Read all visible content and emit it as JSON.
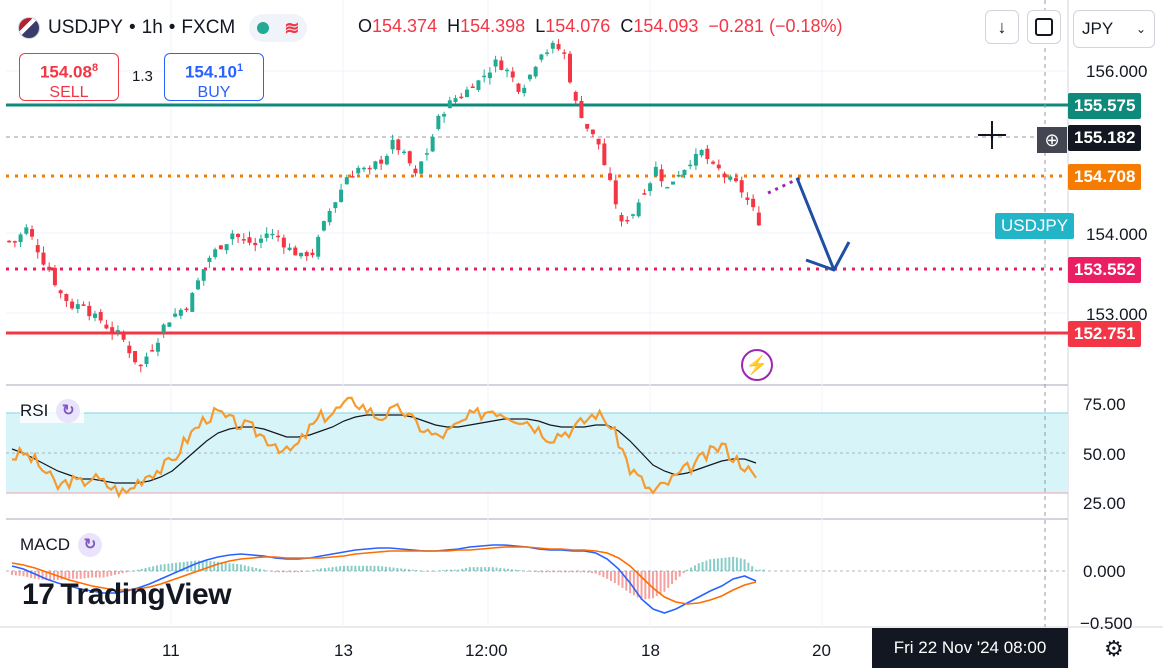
{
  "header": {
    "symbol": "USDJPY",
    "sep1": "•",
    "interval": "1h",
    "sep2": "•",
    "source": "FXCM",
    "ohlc": {
      "o_label": "O",
      "o": "154.374",
      "h_label": "H",
      "h": "154.398",
      "l_label": "L",
      "l": "154.076",
      "c_label": "C",
      "c": "154.093",
      "chg": "−0.281 (−0.18%)"
    }
  },
  "trade": {
    "sell_price": "154.08",
    "sell_price_sup": "8",
    "sell_label": "SELL",
    "spread": "1.3",
    "buy_price": "154.10",
    "buy_price_sup": "1",
    "buy_label": "BUY"
  },
  "currency": "JPY",
  "price_tags": {
    "teal": "155.575",
    "crosshair": "155.182",
    "orange": "154.708",
    "symbol_tag": "USDJPY",
    "pink": "153.552",
    "red": "152.751"
  },
  "colors": {
    "up": "#22ab94",
    "down": "#f23645",
    "teal_line": "#0f8a7a",
    "orange": "#f57c00",
    "pink": "#e91e63",
    "red": "#f23645",
    "rsi": "#f59b2f",
    "rsi_band": "#d7f4f9",
    "arrow": "#1e4fa3",
    "purple": "#9c27b0"
  },
  "rsi_label": "RSI",
  "macd_label": "MACD",
  "logo": "TradingView",
  "crosshair_date": "Fri 22 Nov '24   08:00",
  "chart_data": [
    {
      "type": "candlestick",
      "title": "USDJPY • 1h • FXCM",
      "y_ticks": [
        156.0,
        154.0,
        153.0
      ],
      "y_tick_labels": [
        "156.000",
        "154.000",
        "153.000"
      ],
      "x_tick_labels": [
        "11",
        "13",
        "12:00",
        "18",
        "20"
      ],
      "ylim": [
        152.3,
        156.35
      ],
      "close_path": [
        153.9,
        154.05,
        153.8,
        153.55,
        153.25,
        153.1,
        153.15,
        152.95,
        152.85,
        152.75,
        152.55,
        152.35,
        152.6,
        152.85,
        153.0,
        153.1,
        153.4,
        153.7,
        153.85,
        154.0,
        153.9,
        153.85,
        154.0,
        153.95,
        153.8,
        153.7,
        153.75,
        154.1,
        154.4,
        154.7,
        154.8,
        154.75,
        154.9,
        155.1,
        154.95,
        154.7,
        155.0,
        155.4,
        155.6,
        155.7,
        155.85,
        155.95,
        156.1,
        156.0,
        155.8,
        155.95,
        156.25,
        156.3,
        156.2,
        155.6,
        155.3,
        155.1,
        154.6,
        154.1,
        154.25,
        154.55,
        154.8,
        154.55,
        154.75,
        154.9,
        155.0,
        154.8,
        154.7,
        154.6,
        154.4,
        154.15
      ],
      "levels": [
        {
          "label": "155.575",
          "price": 155.575,
          "style": "solid",
          "color": "teal"
        },
        {
          "label": "154.708",
          "price": 154.708,
          "style": "dotted",
          "color": "orange"
        },
        {
          "label": "153.552",
          "price": 153.552,
          "style": "dotted",
          "color": "pink"
        },
        {
          "label": "152.751",
          "price": 152.751,
          "style": "solid",
          "color": "red"
        }
      ],
      "crosshair_price": 155.182,
      "projection_arrow": {
        "from_price": 154.708,
        "to_price": 153.552
      }
    },
    {
      "type": "line",
      "title": "RSI",
      "y_ticks": [
        75.0,
        50.0,
        25.0
      ],
      "y_tick_labels": [
        "75.00",
        "50.00",
        "25.00"
      ],
      "ylim": [
        20,
        80
      ],
      "band": [
        30,
        70
      ],
      "series": [
        {
          "values": [
            48,
            50,
            46,
            40,
            33,
            36,
            35,
            38,
            35,
            32,
            30,
            36,
            40,
            42,
            46,
            55,
            62,
            68,
            70,
            66,
            64,
            62,
            58,
            55,
            50,
            54,
            62,
            68,
            70,
            74,
            76,
            72,
            68,
            70,
            72,
            66,
            62,
            58,
            60,
            64,
            68,
            70,
            72,
            70,
            68,
            66,
            62,
            58,
            60,
            62,
            66,
            70,
            66,
            56,
            42,
            36,
            30,
            34,
            38,
            42,
            46,
            50,
            54,
            48,
            44,
            36
          ]
        },
        {
          "values": [
            52,
            50,
            47,
            44,
            41,
            39,
            37,
            37,
            36,
            35,
            35,
            35,
            36,
            38,
            41,
            46,
            51,
            56,
            60,
            62,
            63,
            63,
            62,
            60,
            58,
            58,
            59,
            61,
            63,
            66,
            68,
            69,
            69,
            69,
            69,
            68,
            66,
            64,
            63,
            63,
            64,
            65,
            66,
            67,
            67,
            67,
            66,
            64,
            63,
            63,
            63,
            64,
            64,
            61,
            56,
            50,
            44,
            41,
            39,
            40,
            42,
            44,
            46,
            47,
            47,
            45
          ]
        }
      ]
    },
    {
      "type": "bar+line",
      "title": "MACD",
      "y_ticks": [
        0.0,
        -0.5
      ],
      "y_tick_labels": [
        "0.000",
        "−0.500"
      ],
      "ylim": [
        -0.6,
        0.35
      ],
      "series": [
        {
          "values": [
            0.05,
            0.02,
            -0.03,
            -0.08,
            -0.12,
            -0.15,
            -0.18,
            -0.2,
            -0.22,
            -0.22,
            -0.2,
            -0.17,
            -0.13,
            -0.08,
            -0.03,
            0.02,
            0.07,
            0.11,
            0.14,
            0.16,
            0.17,
            0.16,
            0.15,
            0.13,
            0.12,
            0.12,
            0.13,
            0.15,
            0.17,
            0.19,
            0.21,
            0.22,
            0.23,
            0.23,
            0.22,
            0.21,
            0.2,
            0.2,
            0.21,
            0.22,
            0.24,
            0.25,
            0.26,
            0.26,
            0.25,
            0.24,
            0.22,
            0.21,
            0.21,
            0.2,
            0.2,
            0.18,
            0.12,
            0.02,
            -0.12,
            -0.28,
            -0.38,
            -0.42,
            -0.38,
            -0.32,
            -0.26,
            -0.2,
            -0.15,
            -0.08,
            -0.05,
            -0.1
          ]
        },
        {
          "values": [
            0.08,
            0.06,
            0.03,
            -0.01,
            -0.05,
            -0.09,
            -0.12,
            -0.15,
            -0.17,
            -0.19,
            -0.19,
            -0.18,
            -0.16,
            -0.13,
            -0.09,
            -0.05,
            -0.01,
            0.03,
            0.07,
            0.1,
            0.12,
            0.13,
            0.14,
            0.14,
            0.13,
            0.13,
            0.13,
            0.13,
            0.14,
            0.15,
            0.17,
            0.18,
            0.19,
            0.2,
            0.2,
            0.2,
            0.2,
            0.2,
            0.2,
            0.21,
            0.21,
            0.22,
            0.23,
            0.24,
            0.24,
            0.24,
            0.23,
            0.22,
            0.22,
            0.21,
            0.21,
            0.2,
            0.18,
            0.13,
            0.05,
            -0.06,
            -0.17,
            -0.26,
            -0.31,
            -0.33,
            -0.32,
            -0.29,
            -0.25,
            -0.19,
            -0.14,
            -0.11
          ]
        }
      ]
    }
  ]
}
